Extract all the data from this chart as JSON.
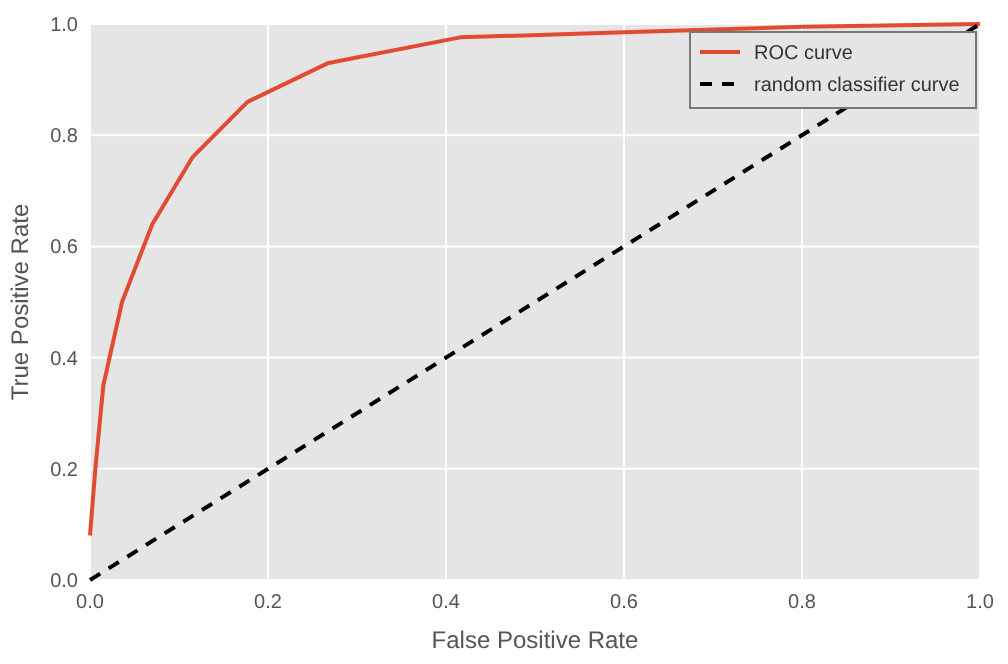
{
  "chart_data": {
    "type": "line",
    "xlabel": "False Positive Rate",
    "ylabel": "True Positive Rate",
    "xlim": [
      0,
      1
    ],
    "ylim": [
      0,
      1
    ],
    "xticks": [
      {
        "value": 0,
        "label": "0.0"
      },
      0.2,
      0.4,
      0.6,
      0.8,
      {
        "value": 1,
        "label": "1.0"
      }
    ],
    "yticks": [
      {
        "value": 0,
        "label": "0.0"
      },
      0.2,
      0.4,
      0.6,
      0.8,
      {
        "value": 1,
        "label": "1.0"
      }
    ],
    "grid": true,
    "legend": "top right",
    "series": [
      {
        "name": "ROC curve",
        "color": "#e24a33",
        "line_style": "solid",
        "x": [
          0,
          0.006,
          0.015,
          0.036,
          0.07,
          0.115,
          0.177,
          0.268,
          0.416,
          0.6,
          0.8,
          1
        ],
        "values": [
          0.08,
          0.2,
          0.35,
          0.5,
          0.64,
          0.76,
          0.86,
          0.93,
          0.976,
          0.985,
          0.995,
          1
        ]
      },
      {
        "name": "random classifier curve",
        "color": "#000000",
        "line_style": "dashed",
        "x": [
          0,
          1
        ],
        "values": [
          0,
          1
        ]
      }
    ]
  }
}
